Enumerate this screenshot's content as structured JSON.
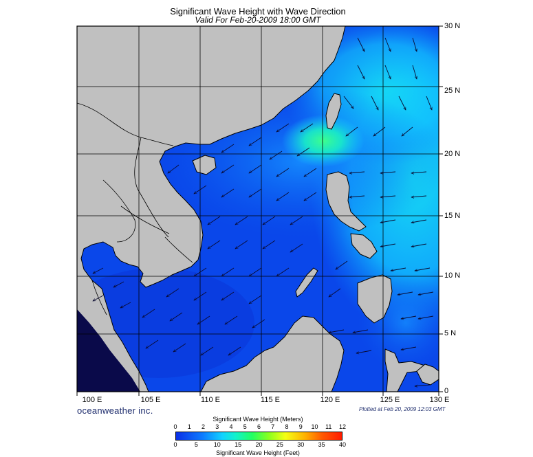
{
  "header": {
    "title": "Significant Wave Height with Wave Direction",
    "subtitle": "Valid For Feb-20-2009 18:00 GMT"
  },
  "map": {
    "lon_labels": [
      "100 E",
      "105 E",
      "110 E",
      "115 E",
      "120 E",
      "125 E",
      "130 E"
    ],
    "lat_labels": [
      "30 N",
      "25 N",
      "20 N",
      "15 N",
      "10 N",
      "5 N",
      "0"
    ],
    "lon_range": [
      100,
      130
    ],
    "lat_range": [
      0,
      30
    ],
    "grid_step_degrees": 5,
    "land_color": "#c0c0c0",
    "coast_color": "#000000",
    "gridline_color": "#000000"
  },
  "footer": {
    "brand": "oceanweather inc.",
    "plotted": "Plotted at Feb 20, 2009 12:03 GMT"
  },
  "colorbar": {
    "title_top": "Significant Wave Height (Meters)",
    "title_bottom": "Significant Wave Height (Feet)",
    "meters_ticks": [
      "0",
      "1",
      "2",
      "3",
      "4",
      "5",
      "6",
      "7",
      "8",
      "9",
      "10",
      "11",
      "12"
    ],
    "feet_ticks": [
      "0",
      "5",
      "10",
      "15",
      "20",
      "25",
      "30",
      "35",
      "40"
    ],
    "meters_max": 12,
    "feet_max": 40,
    "colors": [
      "#0b2fe6",
      "#0c7bff",
      "#11d2ff",
      "#13f2cc",
      "#22ff62",
      "#8aff1f",
      "#f5ff14",
      "#ffb000",
      "#ff5a00",
      "#ff1a00"
    ]
  }
}
